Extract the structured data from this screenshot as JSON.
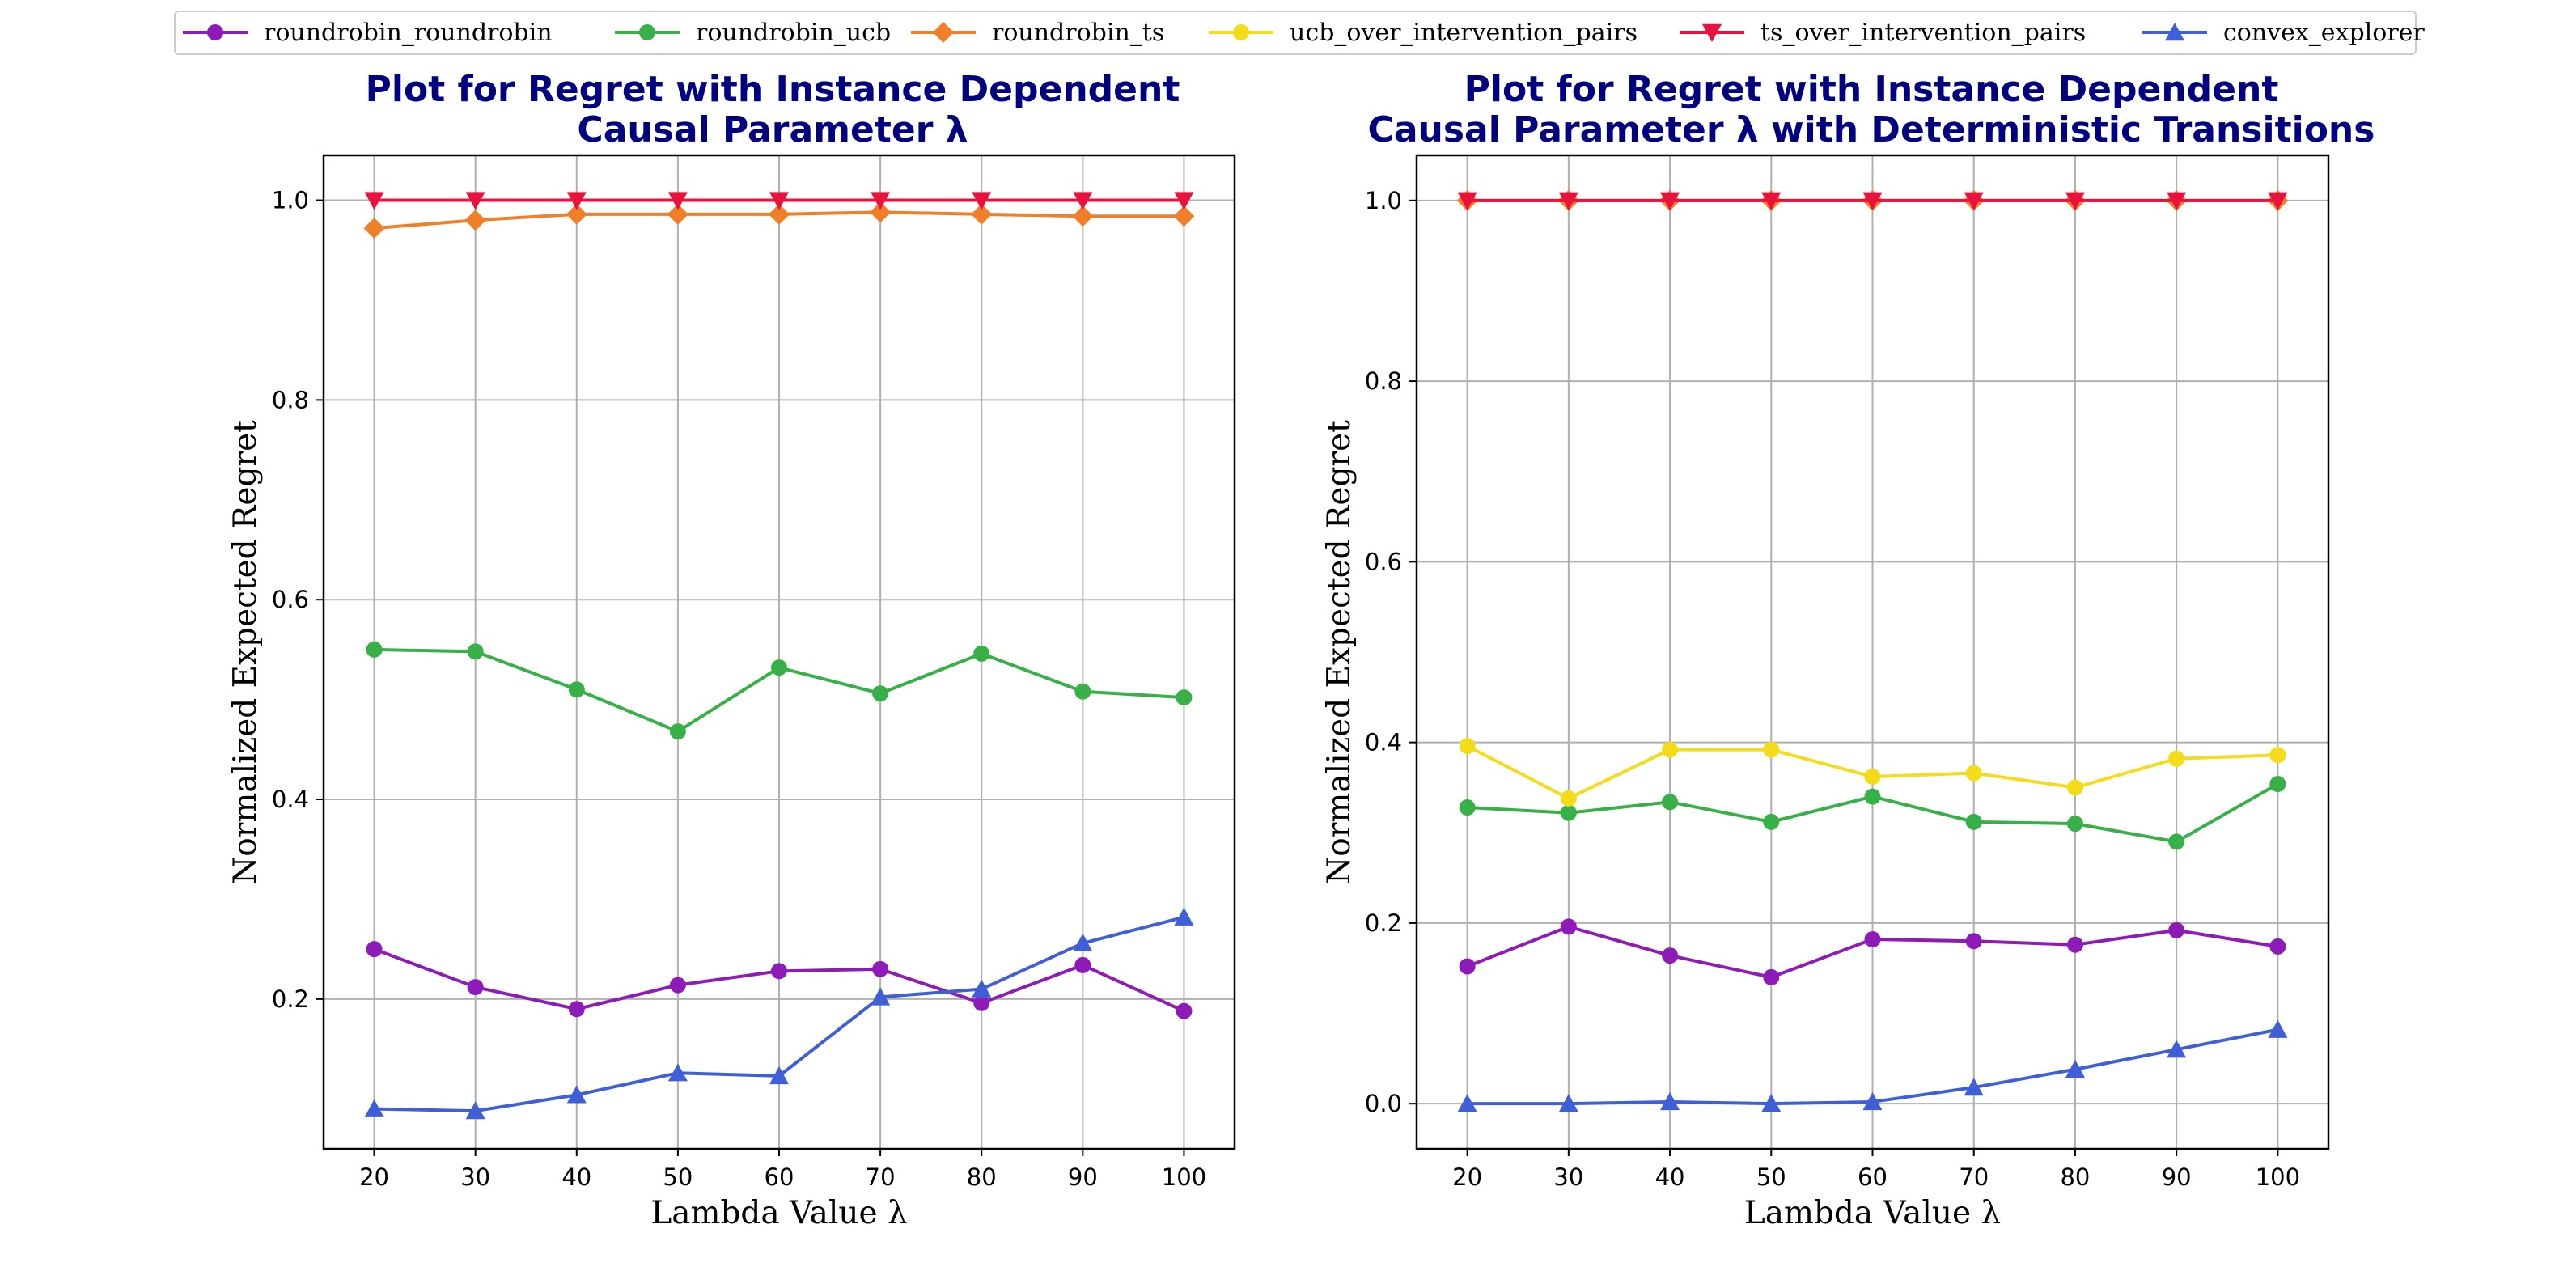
{
  "legend": {
    "items": [
      {
        "name": "roundrobin_roundrobin",
        "color": "#8E1BB8",
        "marker": "circle"
      },
      {
        "name": "roundrobin_ucb",
        "color": "#38B048",
        "marker": "circle"
      },
      {
        "name": "roundrobin_ts",
        "color": "#F07F2A",
        "marker": "diamond"
      },
      {
        "name": "ucb_over_intervention_pairs",
        "color": "#F5DC1B",
        "marker": "circle"
      },
      {
        "name": "ts_over_intervention_pairs",
        "color": "#E8133C",
        "marker": "triangle-down"
      },
      {
        "name": "convex_explorer",
        "color": "#3F5FD8",
        "marker": "triangle-up"
      }
    ]
  },
  "chart_data": [
    {
      "type": "line",
      "title": "Plot for Regret with Instance Dependent\nCausal Parameter λ",
      "xlabel": "Lambda Value λ",
      "ylabel": "Normalized Expected Regret",
      "x": [
        20,
        30,
        40,
        50,
        60,
        70,
        80,
        90,
        100
      ],
      "xlim": [
        15,
        105
      ],
      "ylim": [
        0.05,
        1.045
      ],
      "xticks": [
        20,
        30,
        40,
        50,
        60,
        70,
        80,
        90,
        100
      ],
      "yticks": [
        0.2,
        0.4,
        0.6,
        0.8,
        1.0
      ],
      "grid": true,
      "series": [
        {
          "name": "roundrobin_roundrobin",
          "values": [
            0.25,
            0.212,
            0.19,
            0.214,
            0.228,
            0.23,
            0.196,
            0.234,
            0.188
          ]
        },
        {
          "name": "roundrobin_ucb",
          "values": [
            0.55,
            0.548,
            0.51,
            0.468,
            0.532,
            0.506,
            0.546,
            0.508,
            0.502
          ]
        },
        {
          "name": "roundrobin_ts",
          "values": [
            0.972,
            0.98,
            0.986,
            0.986,
            0.986,
            0.988,
            0.986,
            0.984,
            0.984
          ]
        },
        {
          "name": "ts_over_intervention_pairs",
          "values": [
            1.0,
            1.0,
            1.0,
            1.0,
            1.0,
            1.0,
            1.0,
            1.0,
            1.0
          ]
        },
        {
          "name": "convex_explorer",
          "values": [
            0.09,
            0.088,
            0.104,
            0.126,
            0.123,
            0.202,
            0.21,
            0.256,
            0.282
          ]
        }
      ]
    },
    {
      "type": "line",
      "title": "Plot for Regret with Instance Dependent\nCausal Parameter λ with Deterministic Transitions",
      "xlabel": "Lambda Value λ",
      "ylabel": "Normalized Expected Regret",
      "x": [
        20,
        30,
        40,
        50,
        60,
        70,
        80,
        90,
        100
      ],
      "xlim": [
        15,
        105
      ],
      "ylim": [
        -0.05,
        1.05
      ],
      "xticks": [
        20,
        30,
        40,
        50,
        60,
        70,
        80,
        90,
        100
      ],
      "yticks": [
        0.0,
        0.2,
        0.4,
        0.6,
        0.8,
        1.0
      ],
      "grid": true,
      "series": [
        {
          "name": "roundrobin_roundrobin",
          "values": [
            0.152,
            0.196,
            0.164,
            0.14,
            0.182,
            0.18,
            0.176,
            0.192,
            0.174
          ]
        },
        {
          "name": "roundrobin_ucb",
          "values": [
            0.328,
            0.322,
            0.334,
            0.312,
            0.34,
            0.312,
            0.31,
            0.29,
            0.354
          ]
        },
        {
          "name": "roundrobin_ts",
          "values": [
            1.0,
            1.0,
            1.0,
            1.0,
            1.0,
            1.0,
            1.0,
            1.0,
            1.0
          ]
        },
        {
          "name": "ucb_over_intervention_pairs",
          "values": [
            0.396,
            0.338,
            0.392,
            0.392,
            0.362,
            0.366,
            0.35,
            0.382,
            0.386
          ]
        },
        {
          "name": "ts_over_intervention_pairs",
          "values": [
            1.0,
            1.0,
            1.0,
            1.0,
            1.0,
            1.0,
            1.0,
            1.0,
            1.0
          ]
        },
        {
          "name": "convex_explorer",
          "values": [
            0.0,
            0.0,
            0.002,
            0.0,
            0.002,
            0.018,
            0.038,
            0.06,
            0.082
          ]
        }
      ]
    }
  ]
}
